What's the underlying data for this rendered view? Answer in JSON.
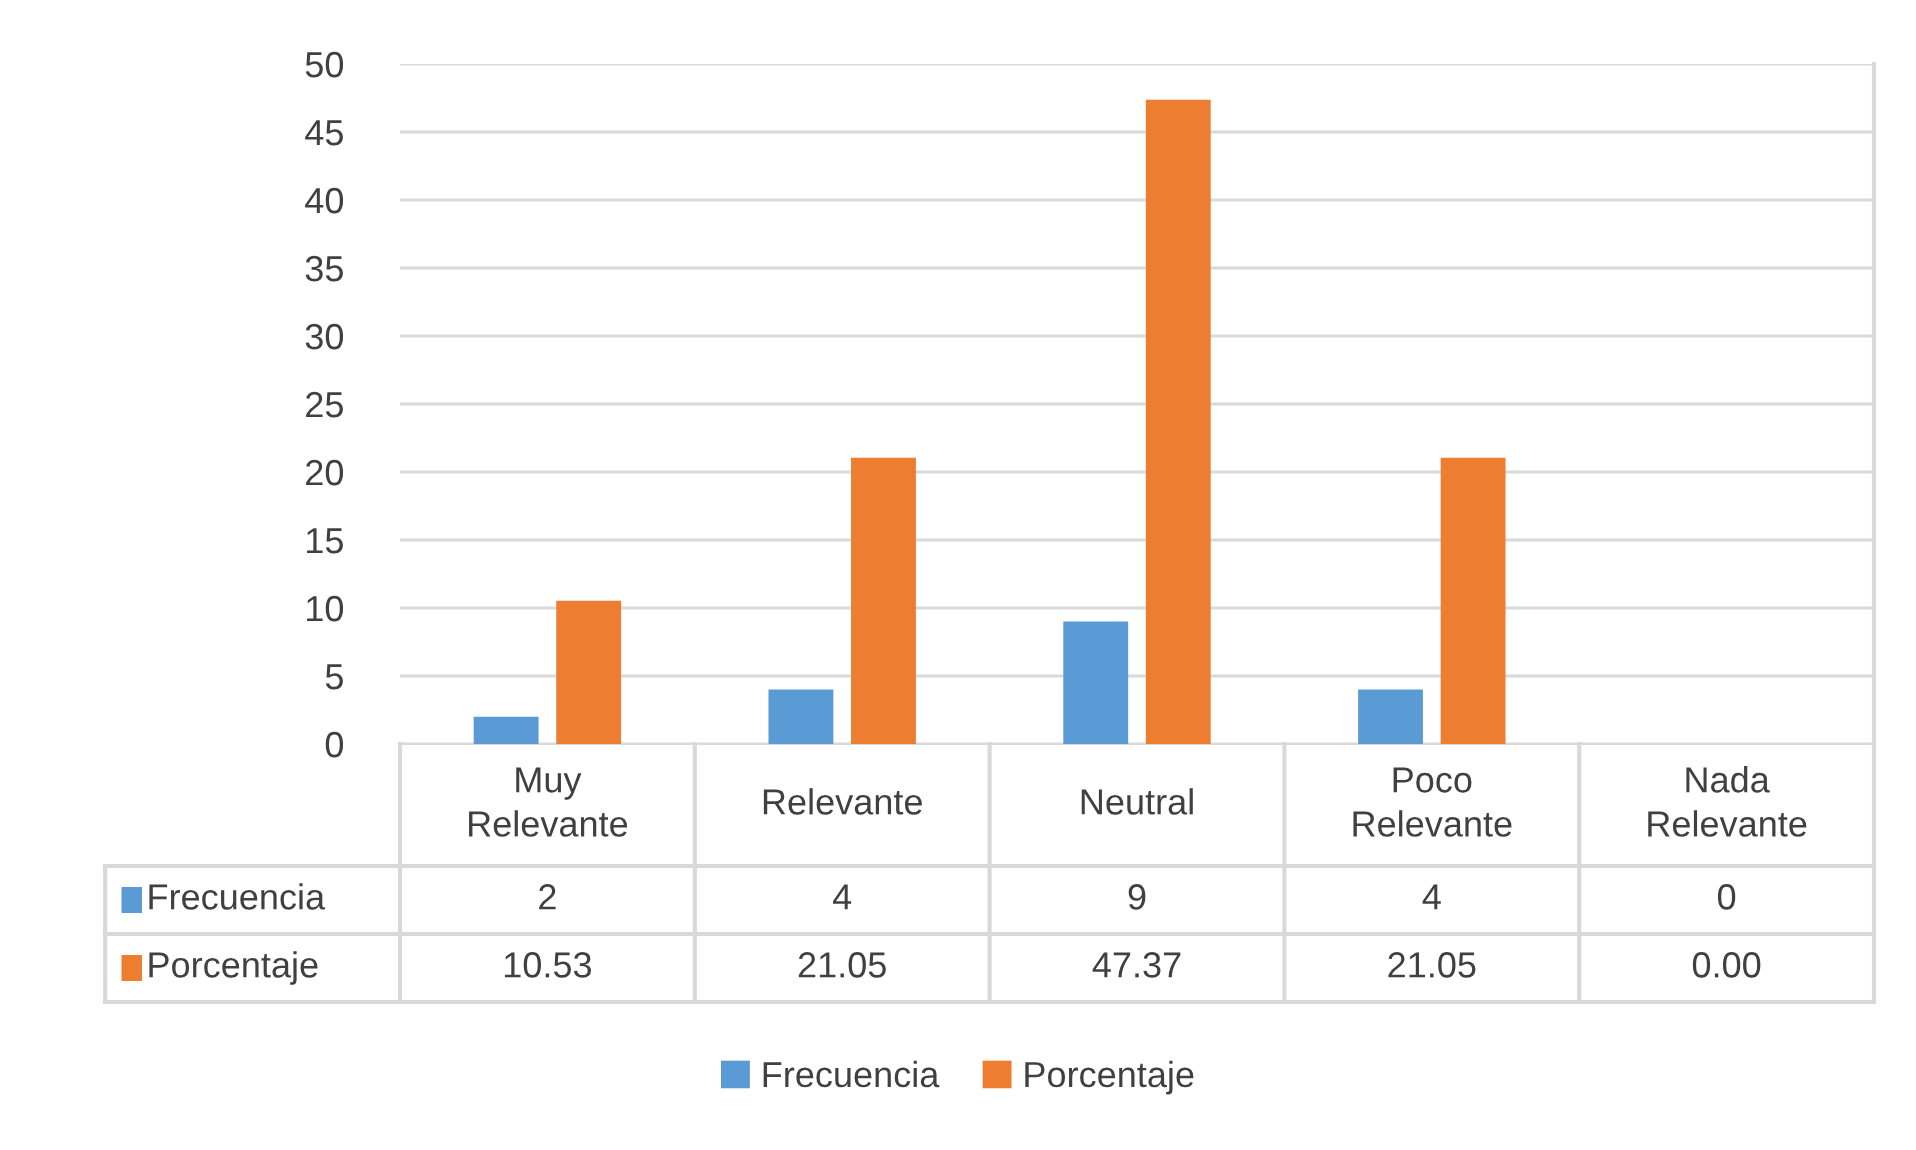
{
  "chart_data": {
    "type": "bar",
    "categories": [
      "Muy Relevante",
      "Relevante",
      "Neutral",
      "Poco Relevante",
      "Nada Relevante"
    ],
    "series": [
      {
        "name": "Frecuencia",
        "color": "#5b9bd5",
        "values": [
          2,
          4,
          9,
          4,
          0
        ],
        "value_labels": [
          "2",
          "4",
          "9",
          "4",
          "0"
        ]
      },
      {
        "name": "Porcentaje",
        "color": "#ed7d31",
        "values": [
          10.53,
          21.05,
          47.37,
          21.05,
          0.0
        ],
        "value_labels": [
          "10.53",
          "21.05",
          "47.37",
          "21.05",
          "0.00"
        ]
      }
    ],
    "ylim": [
      0,
      50
    ],
    "yticks": [
      0,
      5,
      10,
      15,
      20,
      25,
      30,
      35,
      40,
      45,
      50
    ],
    "grid": "y",
    "legend": "bottom"
  }
}
